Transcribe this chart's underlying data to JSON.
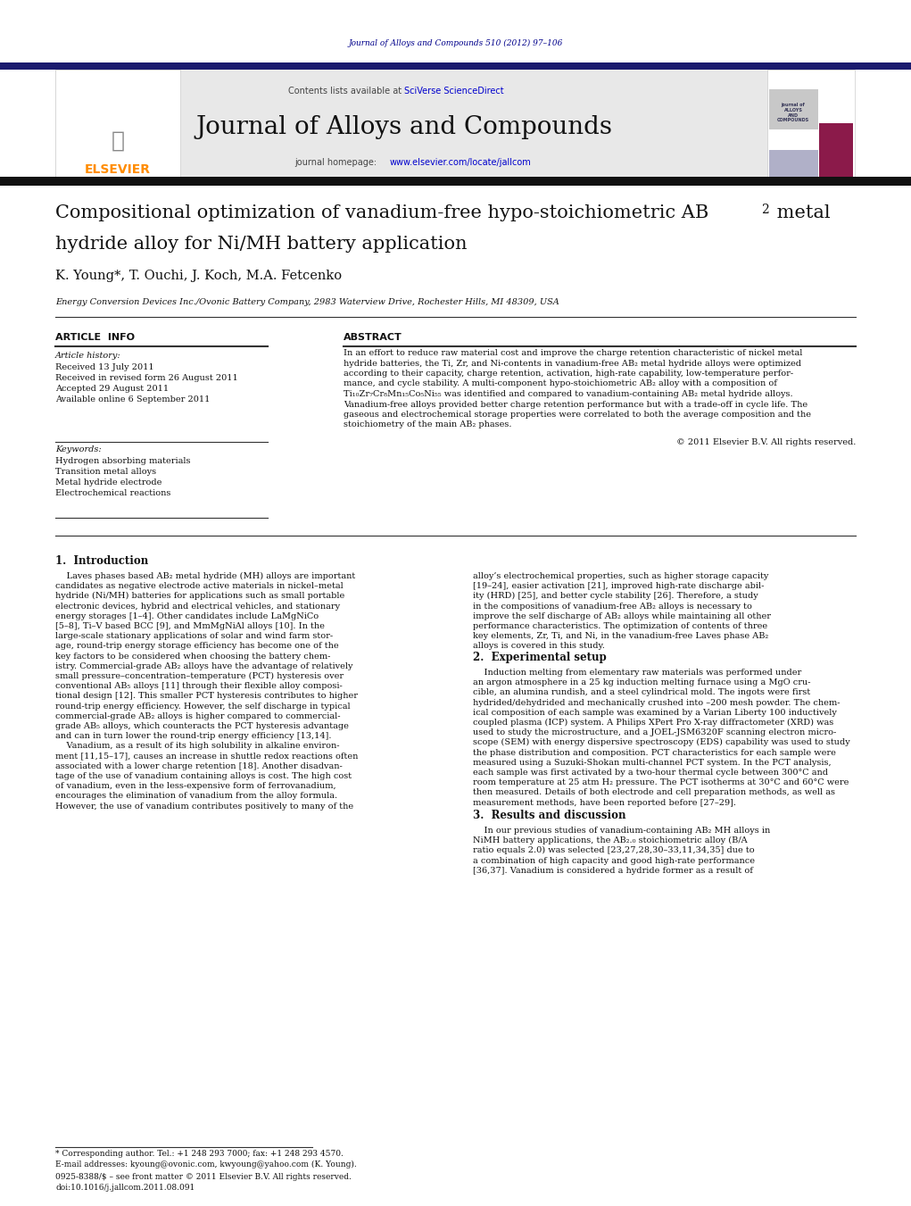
{
  "page_width": 10.21,
  "page_height": 13.51,
  "bg_color": "#ffffff",
  "journal_ref": "Journal of Alloys and Compounds 510 (2012) 97–106",
  "journal_ref_color": "#00008B",
  "header_bg": "#e8e8e8",
  "header_journal_name": "Journal of Alloys and Compounds",
  "header_contents_text": "Contents lists available at ",
  "header_sciverse": "SciVerse ScienceDirect",
  "header_homepage_text": "journal homepage: ",
  "header_homepage_url": "www.elsevier.com/locate/jallcom",
  "header_url_color": "#0000CD",
  "elsevier_color": "#FF8C00",
  "top_bar_color": "#1a1a6e",
  "article_title_line1": "Compositional optimization of vanadium-free hypo-stoichiometric AB",
  "article_title_sub": "2",
  "article_title_line2": "hydride alloy for Ni/MH battery application",
  "authors": "K. Young*, T. Ouchi, J. Koch, M.A. Fetcenko",
  "affiliation": "Energy Conversion Devices Inc./Ovonic Battery Company, 2983 Waterview Drive, Rochester Hills, MI 48309, USA",
  "section_article_info": "ARTICLE  INFO",
  "section_abstract": "ABSTRACT",
  "article_history_label": "Article history:",
  "received": "Received 13 July 2011",
  "revised": "Received in revised form 26 August 2011",
  "accepted": "Accepted 29 August 2011",
  "available": "Available online 6 September 2011",
  "keywords_label": "Keywords:",
  "keywords": [
    "Hydrogen absorbing materials",
    "Transition metal alloys",
    "Metal hydride electrode",
    "Electrochemical reactions"
  ],
  "copyright": "© 2011 Elsevier B.V. All rights reserved.",
  "intro_heading": "1.  Introduction",
  "exp_heading": "2.  Experimental setup",
  "results_heading": "3.  Results and discussion",
  "footer_text1": "* Corresponding author. Tel.: +1 248 293 7000; fax: +1 248 293 4570.",
  "footer_text2": "E-mail addresses: kyoung@ovonic.com, kwyoung@yahoo.com (K. Young).",
  "footer_issn": "0925-8388/$ – see front matter © 2011 Elsevier B.V. All rights reserved.",
  "footer_doi": "doi:10.1016/j.jallcom.2011.08.091"
}
